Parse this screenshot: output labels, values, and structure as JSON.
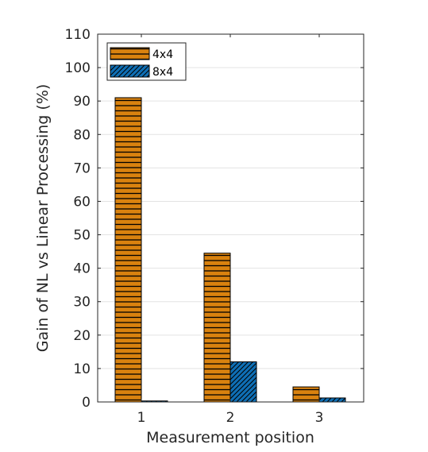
{
  "chart_data": {
    "type": "bar",
    "categories": [
      "1",
      "2",
      "3"
    ],
    "series": [
      {
        "name": "4x4",
        "values": [
          91,
          44.5,
          4.5
        ],
        "color": "#D9820F",
        "pattern": "horizontal-lines"
      },
      {
        "name": "8x4",
        "values": [
          0.3,
          12,
          1.2
        ],
        "color": "#0F6FB5",
        "pattern": "diagonal-lines"
      }
    ],
    "xlabel": "Measurement position",
    "ylabel": "Gain of NL vs Linear Processing (%)",
    "ylim": [
      0,
      110
    ],
    "yticks": [
      0,
      10,
      20,
      30,
      40,
      50,
      60,
      70,
      80,
      90,
      100,
      110
    ],
    "grid": "horizontal",
    "legend_position": "top-left"
  }
}
